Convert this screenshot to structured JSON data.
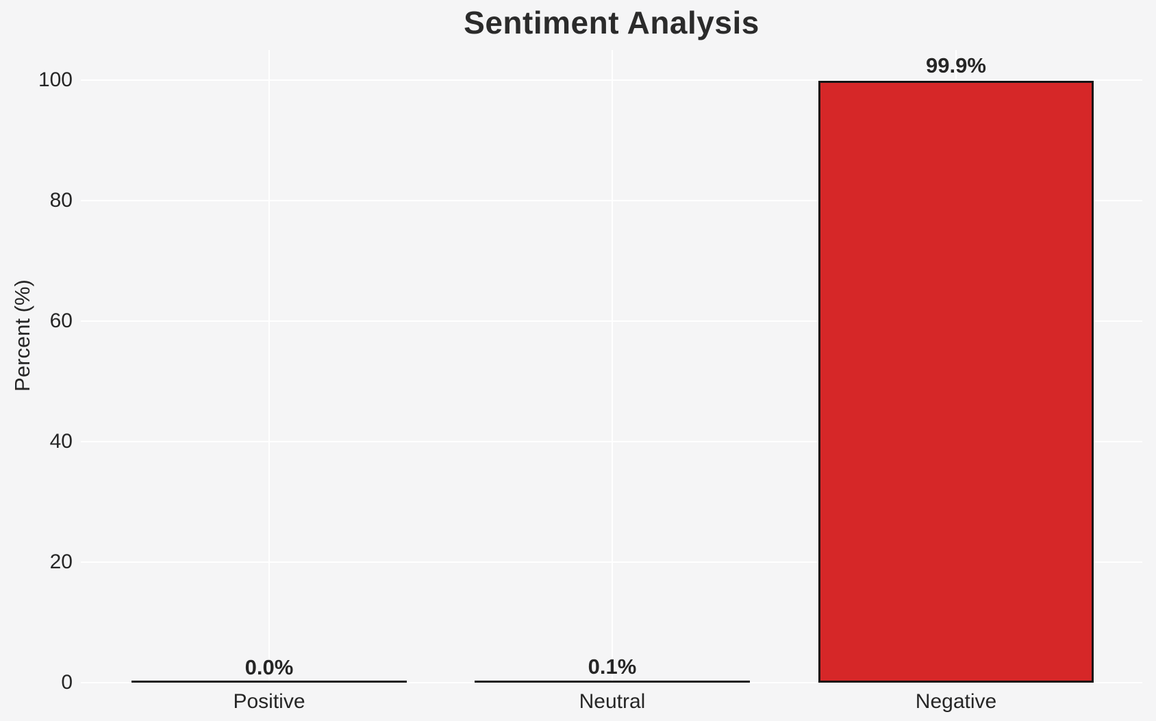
{
  "chart_data": {
    "type": "bar",
    "title": "Sentiment Analysis",
    "xlabel": "",
    "ylabel": "Percent (%)",
    "categories": [
      "Positive",
      "Neutral",
      "Negative"
    ],
    "values": [
      0.0,
      0.1,
      99.9
    ],
    "bar_labels": [
      "0.0%",
      "0.1%",
      "99.9%"
    ],
    "yticks": [
      0,
      20,
      40,
      60,
      80,
      100
    ],
    "ytick_labels": [
      "0",
      "20",
      "40",
      "60",
      "80",
      "100"
    ],
    "ylim": [
      0,
      105
    ],
    "grid": true,
    "legend": false,
    "colors": {
      "bar_fill": "#d62728",
      "bar_edge": "#151515",
      "background": "#f5f5f6",
      "gridline": "#ffffff",
      "text": "#262626"
    }
  }
}
